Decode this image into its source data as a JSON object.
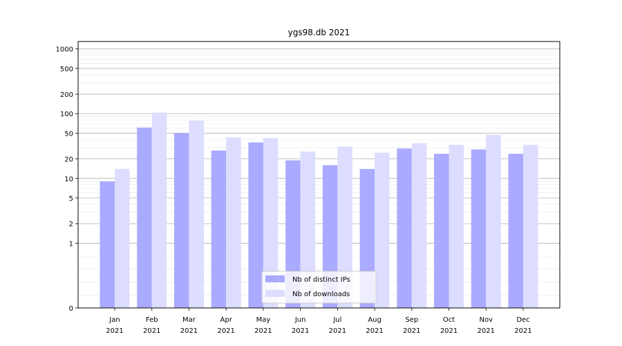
{
  "chart_data": {
    "type": "bar",
    "title": "ygs98.db 2021",
    "xlabel": "",
    "ylabel": "",
    "yscale": "symlog",
    "ylim": [
      0,
      1300
    ],
    "yticks": [
      0,
      1,
      2,
      5,
      10,
      20,
      50,
      100,
      200,
      500,
      1000
    ],
    "grid": true,
    "legend_position": "bottom-center",
    "categories": [
      [
        "Jan",
        "2021"
      ],
      [
        "Feb",
        "2021"
      ],
      [
        "Mar",
        "2021"
      ],
      [
        "Apr",
        "2021"
      ],
      [
        "May",
        "2021"
      ],
      [
        "Jun",
        "2021"
      ],
      [
        "Jul",
        "2021"
      ],
      [
        "Aug",
        "2021"
      ],
      [
        "Sep",
        "2021"
      ],
      [
        "Oct",
        "2021"
      ],
      [
        "Nov",
        "2021"
      ],
      [
        "Dec",
        "2021"
      ]
    ],
    "series": [
      {
        "name": "Nb of distinct IPs",
        "color": "#aaaaff",
        "values": [
          9,
          61,
          50,
          27,
          36,
          19,
          16,
          14,
          29,
          24,
          28,
          24
        ]
      },
      {
        "name": "Nb of downloads",
        "color": "#ddddff",
        "values": [
          14,
          104,
          78,
          43,
          42,
          26,
          31,
          25,
          35,
          33,
          47,
          33
        ]
      }
    ]
  }
}
